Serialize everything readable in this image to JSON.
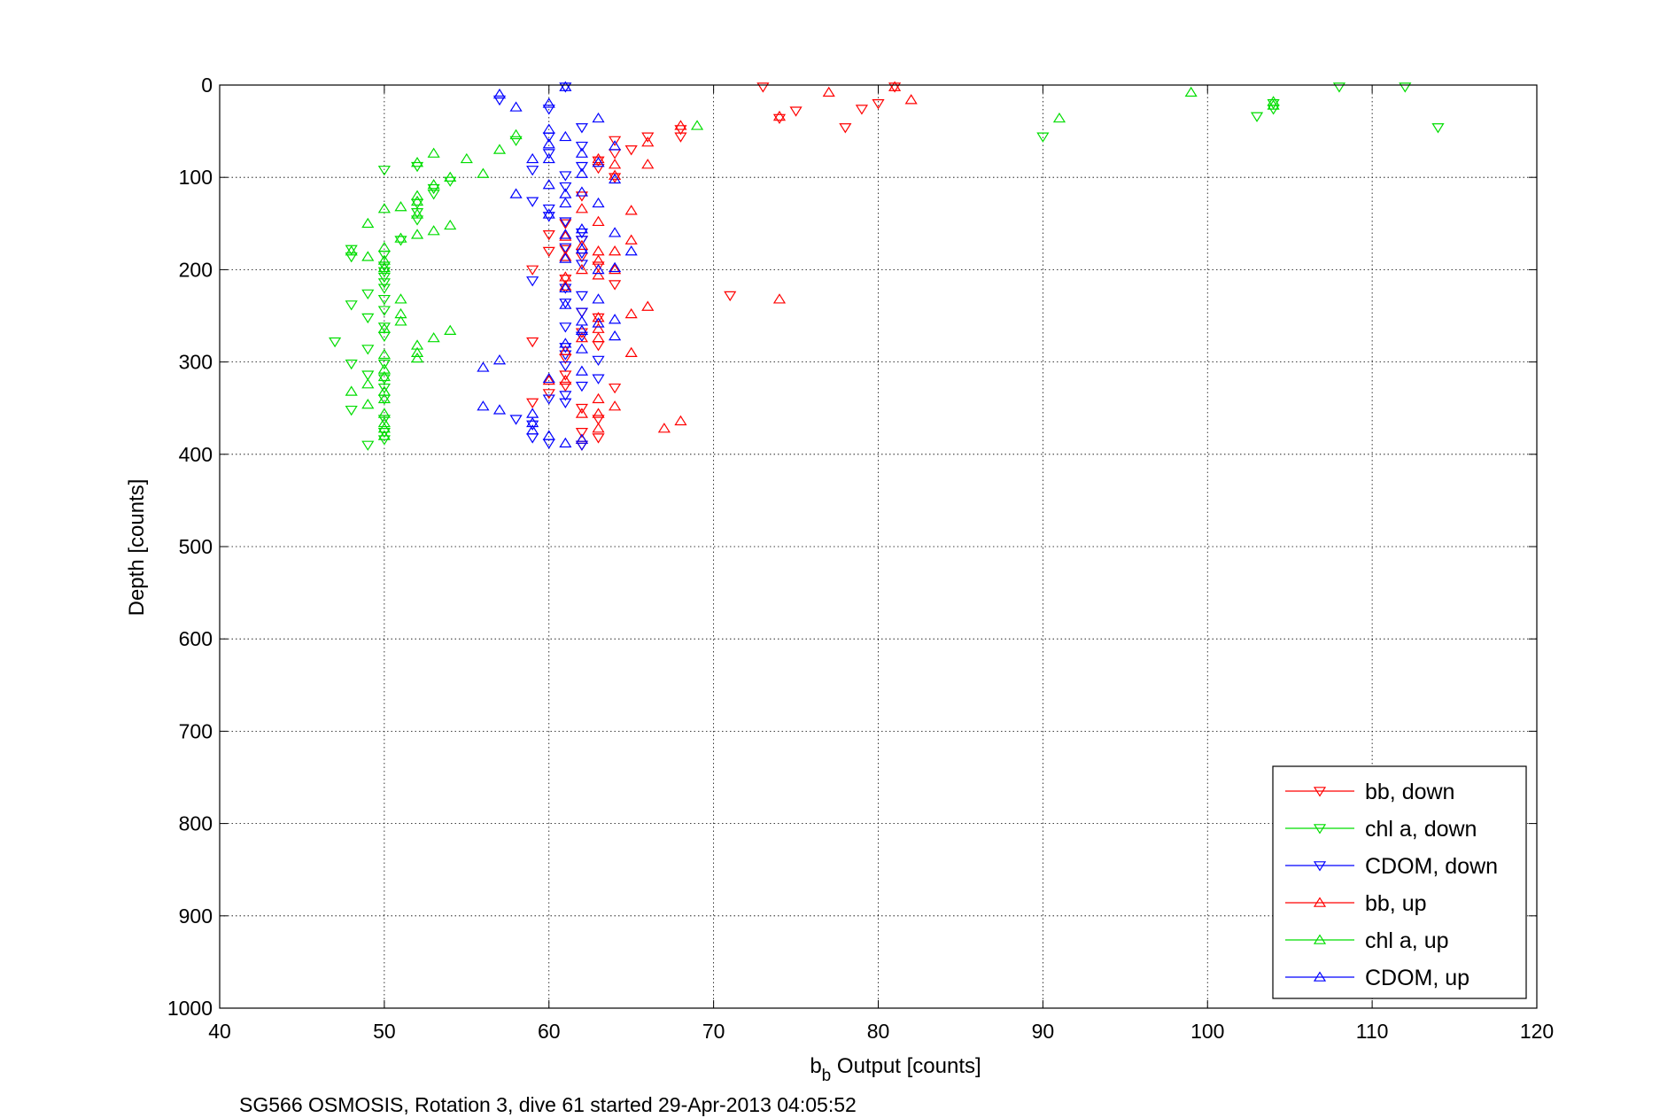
{
  "chart_data": {
    "type": "scatter",
    "xlabel_main": "b",
    "xlabel_sub": "b",
    "xlabel_rest": " Output [counts]",
    "ylabel": "Depth [counts]",
    "caption": "SG566 OSMOSIS, Rotation 3, dive 61 started 29-Apr-2013 04:05:52",
    "xlim": [
      40,
      120
    ],
    "ylim": [
      0,
      1000
    ],
    "y_reversed": true,
    "x_ticks": [
      "40",
      "50",
      "60",
      "70",
      "80",
      "90",
      "100",
      "110",
      "120"
    ],
    "y_ticks": [
      "0",
      "100",
      "200",
      "300",
      "400",
      "500",
      "600",
      "700",
      "800",
      "900",
      "1000"
    ],
    "grid": true,
    "legend_position": "bottom-right",
    "series": [
      {
        "name": "bb, down",
        "color": "#ff0000",
        "marker": "triangle-down",
        "points": [
          [
            73,
            2
          ],
          [
            81,
            2
          ],
          [
            80,
            20
          ],
          [
            79,
            26
          ],
          [
            75,
            28
          ],
          [
            74,
            36
          ],
          [
            78,
            46
          ],
          [
            68,
            48
          ],
          [
            68,
            56
          ],
          [
            66,
            56
          ],
          [
            64,
            60
          ],
          [
            65,
            70
          ],
          [
            64,
            74
          ],
          [
            63,
            82
          ],
          [
            63,
            90
          ],
          [
            64,
            100
          ],
          [
            62,
            120
          ],
          [
            61,
            150
          ],
          [
            60,
            162
          ],
          [
            62,
            168
          ],
          [
            61,
            178
          ],
          [
            60,
            180
          ],
          [
            62,
            186
          ],
          [
            63,
            196
          ],
          [
            59,
            200
          ],
          [
            61,
            210
          ],
          [
            64,
            216
          ],
          [
            71,
            228
          ],
          [
            62,
            246
          ],
          [
            63,
            252
          ],
          [
            62,
            268
          ],
          [
            63,
            282
          ],
          [
            59,
            278
          ],
          [
            61,
            296
          ],
          [
            61,
            314
          ],
          [
            61,
            326
          ],
          [
            60,
            334
          ],
          [
            64,
            328
          ],
          [
            59,
            344
          ],
          [
            62,
            350
          ],
          [
            63,
            362
          ],
          [
            62,
            376
          ],
          [
            63,
            382
          ],
          [
            62,
            390
          ]
        ]
      },
      {
        "name": "chl a, down",
        "color": "#00dd00",
        "marker": "triangle-down",
        "points": [
          [
            108,
            2
          ],
          [
            112,
            2
          ],
          [
            104,
            20
          ],
          [
            104,
            26
          ],
          [
            103,
            34
          ],
          [
            114,
            46
          ],
          [
            90,
            56
          ],
          [
            58,
            60
          ],
          [
            50,
            92
          ],
          [
            52,
            88
          ],
          [
            54,
            104
          ],
          [
            53,
            112
          ],
          [
            53,
            118
          ],
          [
            52,
            128
          ],
          [
            52,
            138
          ],
          [
            52,
            146
          ],
          [
            51,
            168
          ],
          [
            48,
            178
          ],
          [
            48,
            186
          ],
          [
            50,
            184
          ],
          [
            50,
            196
          ],
          [
            50,
            202
          ],
          [
            50,
            208
          ],
          [
            50,
            214
          ],
          [
            50,
            220
          ],
          [
            49,
            226
          ],
          [
            50,
            232
          ],
          [
            48,
            238
          ],
          [
            50,
            244
          ],
          [
            49,
            252
          ],
          [
            50,
            262
          ],
          [
            50,
            272
          ],
          [
            47,
            278
          ],
          [
            49,
            286
          ],
          [
            48,
            302
          ],
          [
            50,
            302
          ],
          [
            50,
            318
          ],
          [
            49,
            314
          ],
          [
            50,
            328
          ],
          [
            50,
            340
          ],
          [
            48,
            352
          ],
          [
            50,
            362
          ],
          [
            50,
            376
          ],
          [
            50,
            384
          ],
          [
            49,
            390
          ]
        ]
      },
      {
        "name": "CDOM, down",
        "color": "#0000ff",
        "marker": "triangle-down",
        "points": [
          [
            61,
            2
          ],
          [
            57,
            16
          ],
          [
            60,
            26
          ],
          [
            62,
            46
          ],
          [
            60,
            56
          ],
          [
            62,
            66
          ],
          [
            60,
            74
          ],
          [
            59,
            92
          ],
          [
            61,
            98
          ],
          [
            62,
            88
          ],
          [
            61,
            110
          ],
          [
            59,
            126
          ],
          [
            60,
            134
          ],
          [
            60,
            142
          ],
          [
            61,
            148
          ],
          [
            62,
            160
          ],
          [
            62,
            168
          ],
          [
            61,
            176
          ],
          [
            62,
            182
          ],
          [
            62,
            194
          ],
          [
            59,
            212
          ],
          [
            61,
            220
          ],
          [
            62,
            228
          ],
          [
            61,
            236
          ],
          [
            62,
            246
          ],
          [
            61,
            262
          ],
          [
            62,
            272
          ],
          [
            61,
            284
          ],
          [
            61,
            292
          ],
          [
            63,
            298
          ],
          [
            61,
            304
          ],
          [
            63,
            318
          ],
          [
            62,
            326
          ],
          [
            61,
            336
          ],
          [
            60,
            340
          ],
          [
            61,
            344
          ],
          [
            58,
            362
          ],
          [
            59,
            368
          ],
          [
            59,
            382
          ],
          [
            60,
            388
          ],
          [
            62,
            390
          ]
        ]
      },
      {
        "name": "bb, up",
        "color": "#ff0000",
        "marker": "triangle-up",
        "points": [
          [
            81,
            2
          ],
          [
            77,
            8
          ],
          [
            82,
            16
          ],
          [
            74,
            34
          ],
          [
            68,
            44
          ],
          [
            66,
            62
          ],
          [
            64,
            86
          ],
          [
            63,
            80
          ],
          [
            66,
            86
          ],
          [
            64,
            98
          ],
          [
            65,
            136
          ],
          [
            62,
            134
          ],
          [
            63,
            148
          ],
          [
            61,
            164
          ],
          [
            65,
            168
          ],
          [
            62,
            174
          ],
          [
            63,
            180
          ],
          [
            61,
            186
          ],
          [
            64,
            180
          ],
          [
            63,
            190
          ],
          [
            62,
            200
          ],
          [
            64,
            200
          ],
          [
            63,
            206
          ],
          [
            61,
            208
          ],
          [
            61,
            218
          ],
          [
            74,
            232
          ],
          [
            66,
            240
          ],
          [
            63,
            252
          ],
          [
            65,
            248
          ],
          [
            63,
            264
          ],
          [
            62,
            274
          ],
          [
            63,
            274
          ],
          [
            61,
            288
          ],
          [
            65,
            290
          ],
          [
            60,
            320
          ],
          [
            61,
            320
          ],
          [
            63,
            340
          ],
          [
            64,
            348
          ],
          [
            62,
            356
          ],
          [
            63,
            356
          ],
          [
            68,
            364
          ],
          [
            67,
            372
          ],
          [
            63,
            372
          ],
          [
            62,
            384
          ]
        ]
      },
      {
        "name": "chl a, up",
        "color": "#00dd00",
        "marker": "triangle-up",
        "points": [
          [
            99,
            8
          ],
          [
            104,
            18
          ],
          [
            104,
            22
          ],
          [
            69,
            44
          ],
          [
            91,
            36
          ],
          [
            58,
            54
          ],
          [
            57,
            70
          ],
          [
            55,
            80
          ],
          [
            53,
            74
          ],
          [
            56,
            96
          ],
          [
            54,
            100
          ],
          [
            52,
            84
          ],
          [
            53,
            108
          ],
          [
            52,
            120
          ],
          [
            52,
            126
          ],
          [
            51,
            132
          ],
          [
            52,
            140
          ],
          [
            50,
            134
          ],
          [
            54,
            152
          ],
          [
            53,
            158
          ],
          [
            52,
            162
          ],
          [
            49,
            150
          ],
          [
            51,
            166
          ],
          [
            50,
            176
          ],
          [
            48,
            180
          ],
          [
            49,
            186
          ],
          [
            50,
            190
          ],
          [
            50,
            198
          ],
          [
            51,
            232
          ],
          [
            51,
            248
          ],
          [
            51,
            256
          ],
          [
            50,
            264
          ],
          [
            54,
            266
          ],
          [
            53,
            274
          ],
          [
            52,
            282
          ],
          [
            52,
            290
          ],
          [
            52,
            296
          ],
          [
            50,
            292
          ],
          [
            50,
            308
          ],
          [
            50,
            316
          ],
          [
            50,
            332
          ],
          [
            48,
            332
          ],
          [
            49,
            324
          ],
          [
            50,
            340
          ],
          [
            49,
            346
          ],
          [
            50,
            356
          ],
          [
            50,
            366
          ],
          [
            50,
            372
          ],
          [
            50,
            380
          ]
        ]
      },
      {
        "name": "CDOM, up",
        "color": "#0000ff",
        "marker": "triangle-up",
        "points": [
          [
            61,
            2
          ],
          [
            57,
            10
          ],
          [
            58,
            24
          ],
          [
            60,
            20
          ],
          [
            63,
            36
          ],
          [
            60,
            48
          ],
          [
            61,
            56
          ],
          [
            60,
            64
          ],
          [
            64,
            66
          ],
          [
            62,
            74
          ],
          [
            60,
            80
          ],
          [
            59,
            80
          ],
          [
            63,
            84
          ],
          [
            62,
            96
          ],
          [
            64,
            102
          ],
          [
            60,
            108
          ],
          [
            61,
            118
          ],
          [
            58,
            118
          ],
          [
            62,
            116
          ],
          [
            63,
            128
          ],
          [
            61,
            128
          ],
          [
            60,
            140
          ],
          [
            61,
            162
          ],
          [
            62,
            156
          ],
          [
            64,
            160
          ],
          [
            65,
            180
          ],
          [
            62,
            178
          ],
          [
            61,
            188
          ],
          [
            64,
            198
          ],
          [
            63,
            200
          ],
          [
            61,
            220
          ],
          [
            63,
            232
          ],
          [
            61,
            238
          ],
          [
            62,
            256
          ],
          [
            63,
            258
          ],
          [
            64,
            254
          ],
          [
            62,
            266
          ],
          [
            64,
            272
          ],
          [
            61,
            280
          ],
          [
            62,
            286
          ],
          [
            57,
            298
          ],
          [
            56,
            306
          ],
          [
            60,
            318
          ],
          [
            62,
            310
          ],
          [
            56,
            348
          ],
          [
            57,
            352
          ],
          [
            59,
            356
          ],
          [
            59,
            366
          ],
          [
            59,
            374
          ],
          [
            60,
            380
          ],
          [
            61,
            388
          ],
          [
            62,
            384
          ]
        ]
      }
    ]
  }
}
